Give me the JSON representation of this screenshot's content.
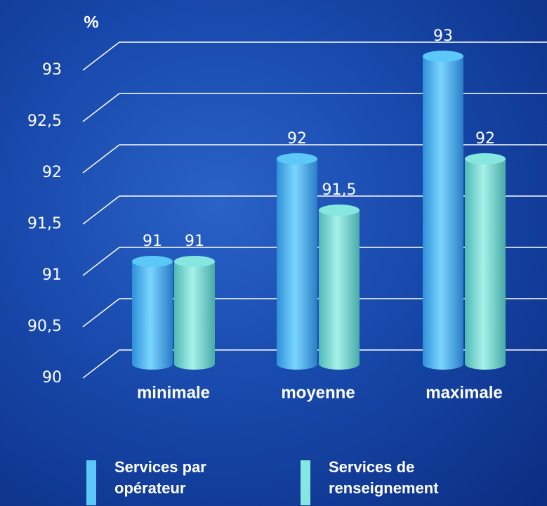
{
  "chart_data": {
    "type": "bar",
    "y_label": "%",
    "categories": [
      "minimale",
      "moyenne",
      "maximale"
    ],
    "series": [
      {
        "name": "Services par opérateur",
        "color": "#5cc8f8",
        "values": [
          91,
          92,
          93
        ],
        "value_labels": [
          "91",
          "92",
          "93"
        ]
      },
      {
        "name": "Services de renseignement",
        "color": "#86e6e0",
        "values": [
          91,
          91.5,
          92
        ],
        "value_labels": [
          "91",
          "91,5",
          "92"
        ]
      }
    ],
    "ylim": [
      90,
      93
    ],
    "yticks": [
      90,
      {
        "value": 90.5,
        "label": "90,5"
      },
      91,
      {
        "value": 91.5,
        "label": "91,5"
      },
      92,
      {
        "value": 92.5,
        "label": "92,5"
      },
      93
    ],
    "grid": true
  }
}
